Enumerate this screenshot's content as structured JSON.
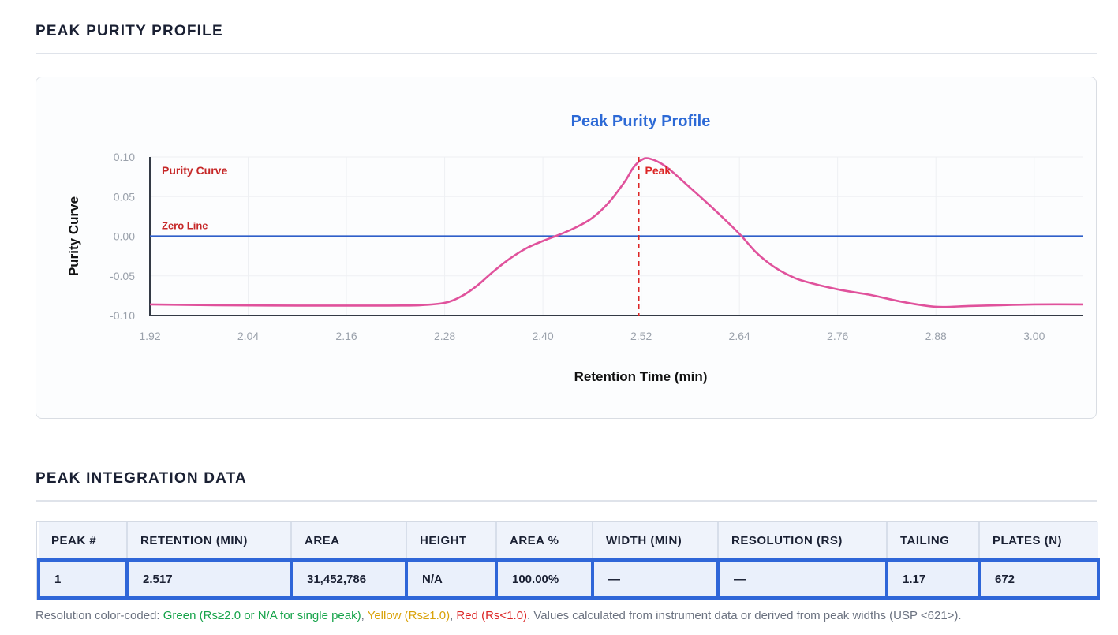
{
  "sections": {
    "profile_title": "PEAK PURITY PROFILE",
    "integration_title": "PEAK INTEGRATION DATA"
  },
  "chart_data": {
    "type": "line",
    "title": "Peak Purity Profile",
    "xlabel": "Retention Time (min)",
    "ylabel": "Purity Curve",
    "xlim": [
      1.92,
      3.06
    ],
    "ylim": [
      -0.1,
      0.1
    ],
    "x_ticks": [
      "1.92",
      "2.04",
      "2.16",
      "2.28",
      "2.40",
      "2.52",
      "2.64",
      "2.76",
      "2.88",
      "3.00"
    ],
    "y_ticks": [
      "0.10",
      "0.05",
      "0.00",
      "-0.05",
      "-0.10"
    ],
    "grid": true,
    "series": [
      {
        "name": "Purity Curve",
        "color": "#e0529c",
        "points": [
          [
            1.92,
            -0.086
          ],
          [
            2.0,
            -0.087
          ],
          [
            2.1,
            -0.0875
          ],
          [
            2.2,
            -0.0875
          ],
          [
            2.25,
            -0.087
          ],
          [
            2.28,
            -0.084
          ],
          [
            2.3,
            -0.076
          ],
          [
            2.32,
            -0.062
          ],
          [
            2.34,
            -0.044
          ],
          [
            2.36,
            -0.028
          ],
          [
            2.38,
            -0.015
          ],
          [
            2.4,
            -0.006
          ],
          [
            2.42,
            0.002
          ],
          [
            2.44,
            0.011
          ],
          [
            2.46,
            0.023
          ],
          [
            2.48,
            0.042
          ],
          [
            2.5,
            0.069
          ],
          [
            2.51,
            0.086
          ],
          [
            2.52,
            0.096
          ],
          [
            2.53,
            0.098
          ],
          [
            2.55,
            0.088
          ],
          [
            2.58,
            0.061
          ],
          [
            2.61,
            0.033
          ],
          [
            2.64,
            0.003
          ],
          [
            2.66,
            -0.02
          ],
          [
            2.68,
            -0.037
          ],
          [
            2.7,
            -0.049
          ],
          [
            2.72,
            -0.057
          ],
          [
            2.76,
            -0.067
          ],
          [
            2.8,
            -0.074
          ],
          [
            2.84,
            -0.083
          ],
          [
            2.88,
            -0.089
          ],
          [
            2.92,
            -0.088
          ],
          [
            2.96,
            -0.087
          ],
          [
            3.0,
            -0.086
          ],
          [
            3.06,
            -0.086
          ]
        ]
      },
      {
        "name": "Zero Line",
        "color": "#2f5fc9",
        "points": [
          [
            1.92,
            0.0
          ],
          [
            3.06,
            0.0
          ]
        ]
      }
    ],
    "annotations": [
      {
        "text": "Peak",
        "x": 2.517,
        "color": "#dc2626"
      }
    ],
    "legend_labels": {
      "curve": "Purity Curve",
      "zero": "Zero Line"
    },
    "colors": {
      "title": "#2d6ad6",
      "curve": "#e0529c",
      "zero": "#2f5fc9",
      "peak": "#dc2626",
      "label": "#c62828"
    }
  },
  "table": {
    "headers": [
      "PEAK #",
      "RETENTION (MIN)",
      "AREA",
      "HEIGHT",
      "AREA %",
      "WIDTH (MIN)",
      "RESOLUTION (RS)",
      "TAILING",
      "PLATES (N)"
    ],
    "rows": [
      [
        "1",
        "2.517",
        "31,452,786",
        "N/A",
        "100.00%",
        "—",
        "—",
        "1.17",
        "672"
      ]
    ]
  },
  "footnote": {
    "prefix": "Resolution color-coded: ",
    "green": "Green (Rs≥2.0 or N/A for single peak)",
    "sep1": ", ",
    "yellow": "Yellow (Rs≥1.0)",
    "sep2": ", ",
    "red": "Red (Rs<1.0)",
    "suffix": ". Values calculated from instrument data or derived from peak widths (USP <621>)."
  }
}
